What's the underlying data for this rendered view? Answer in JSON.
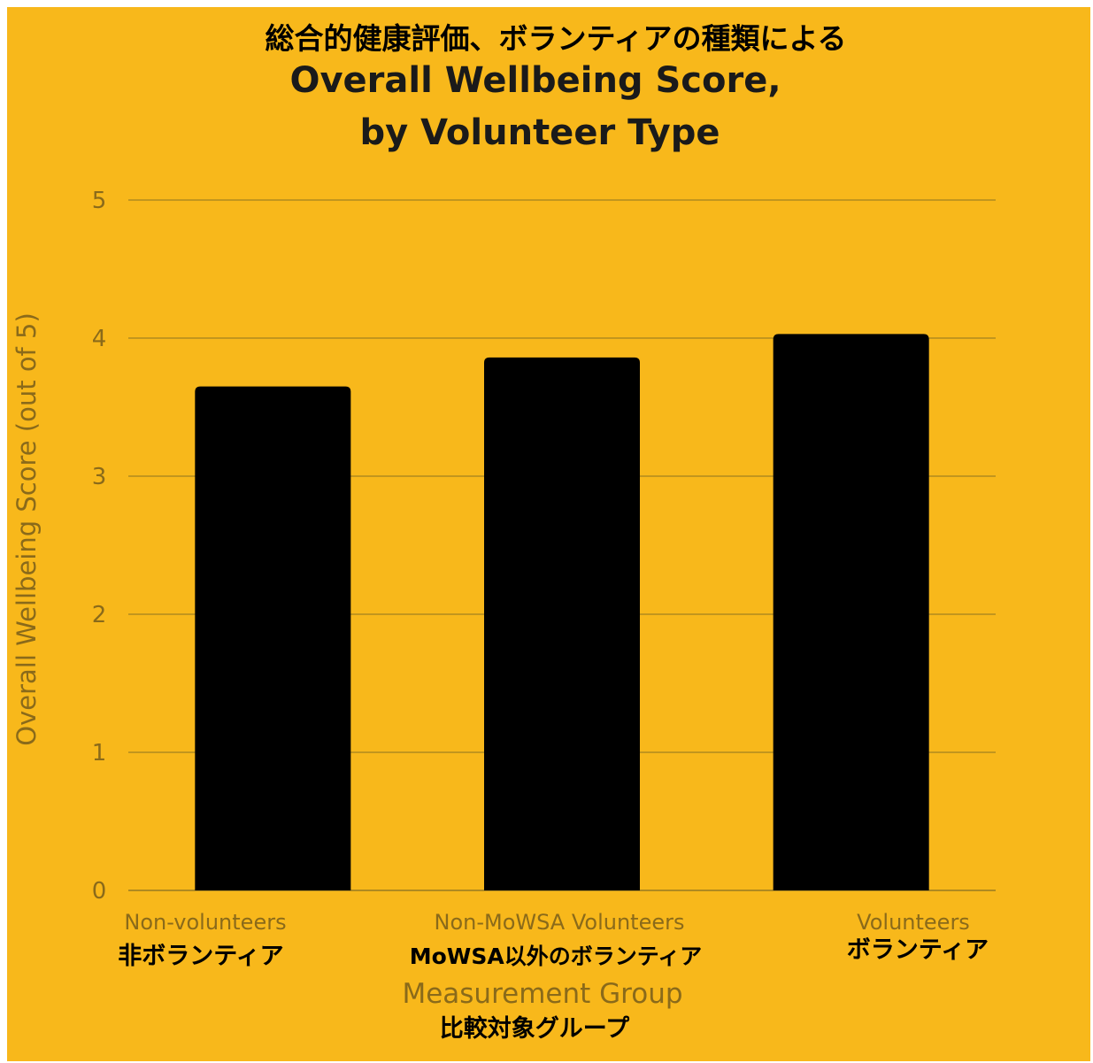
{
  "colors": {
    "background": "#f8b81b",
    "bar": "#000000",
    "grid": "#b08a20",
    "axis_text": "#8a6a1a"
  },
  "chart_data": {
    "type": "bar",
    "title_ja": "総合的健康評価、ボランティアの種類による",
    "title_line1": "Overall Wellbeing Score,",
    "title_line2": "by Volunteer Type",
    "ylabel": "Overall Wellbeing Score (out of 5)",
    "xlabel": "Measurement Group",
    "xlabel_ja": "比較対象グループ",
    "categories": [
      "Non-volunteers",
      "Non-MoWSA Volunteers",
      "Volunteers"
    ],
    "categories_ja": [
      "非ボランティア",
      "MoWSA以外のボランティア",
      "ボランティア"
    ],
    "values": [
      3.65,
      3.86,
      4.03
    ],
    "ylim": [
      0,
      5
    ],
    "yticks": [
      "0",
      "1",
      "2",
      "3",
      "4",
      "5"
    ],
    "grid": true
  }
}
